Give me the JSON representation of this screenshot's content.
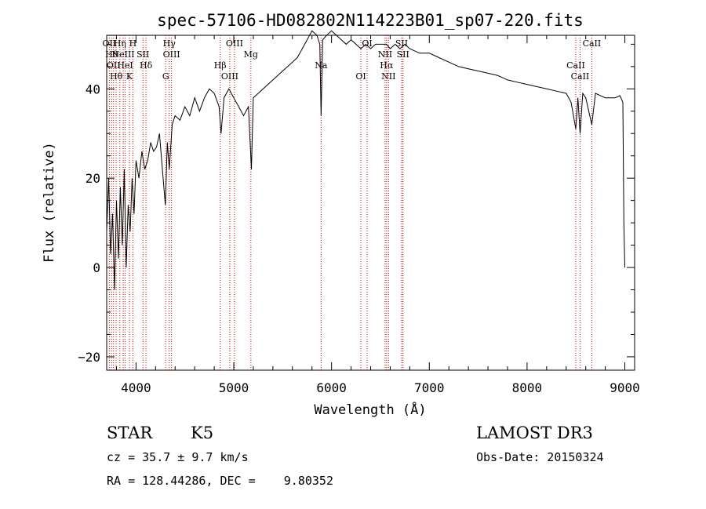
{
  "chart_data": {
    "type": "line",
    "title": "spec-57106-HD082802N114223B01_sp07-220.fits",
    "xlabel": "Wavelength (Å)",
    "ylabel": "Flux (relative)",
    "xlim": [
      3700,
      9100
    ],
    "ylim": [
      -23,
      52
    ],
    "xticks": [
      4000,
      5000,
      6000,
      7000,
      8000,
      9000
    ],
    "yticks": [
      -20,
      0,
      20,
      40
    ],
    "grid": false,
    "series": [
      {
        "values_description_note": "",
        "x": [
          3700,
          3720,
          3740,
          3760,
          3780,
          3800,
          3820,
          3840,
          3860,
          3880,
          3900,
          3920,
          3940,
          3960,
          3980,
          4000,
          4030,
          4060,
          4090,
          4120,
          4150,
          4180,
          4210,
          4240,
          4270,
          4300,
          4320,
          4340,
          4370,
          4400,
          4450,
          4500,
          4550,
          4600,
          4650,
          4700,
          4750,
          4800,
          4850,
          4870,
          4900,
          4950,
          5000,
          5050,
          5100,
          5150,
          5180,
          5200,
          5250,
          5300,
          5350,
          5400,
          5450,
          5500,
          5550,
          5600,
          5650,
          5700,
          5750,
          5800,
          5850,
          5880,
          5893,
          5910,
          5950,
          6000,
          6050,
          6100,
          6150,
          6200,
          6250,
          6300,
          6350,
          6400,
          6450,
          6500,
          6563,
          6600,
          6650,
          6700,
          6750,
          6800,
          6900,
          7000,
          7100,
          7200,
          7300,
          7400,
          7500,
          7600,
          7700,
          7800,
          7900,
          8000,
          8100,
          8200,
          8300,
          8400,
          8450,
          8498,
          8520,
          8542,
          8570,
          8600,
          8662,
          8700,
          8750,
          8800,
          8850,
          8900,
          8950,
          8980,
          8990,
          9000
        ],
        "y": [
          8,
          20,
          3,
          12,
          -5,
          15,
          2,
          18,
          5,
          22,
          0,
          14,
          8,
          20,
          12,
          24,
          20,
          26,
          22,
          24,
          28,
          26,
          27,
          30,
          22,
          14,
          28,
          22,
          32,
          34,
          33,
          36,
          34,
          38,
          35,
          38,
          40,
          39,
          36,
          30,
          38,
          40,
          38,
          36,
          34,
          36,
          22,
          38,
          39,
          40,
          41,
          42,
          43,
          44,
          45,
          46,
          47,
          49,
          51,
          53,
          52,
          50,
          34,
          51,
          52,
          53,
          52,
          51,
          50,
          51,
          50,
          49,
          50,
          49,
          50,
          50,
          50,
          49,
          50,
          49,
          50,
          49,
          48,
          48,
          47,
          46,
          45,
          44.5,
          44,
          43.5,
          43,
          42,
          41.5,
          41,
          40.5,
          40,
          39.5,
          39,
          37,
          31,
          38,
          30,
          39,
          38,
          32,
          39,
          38.5,
          38,
          38,
          38,
          38.5,
          37,
          10,
          0
        ]
      }
    ],
    "line_markers": [
      {
        "wave": 3727,
        "label": "OII"
      },
      {
        "wave": 3750,
        "label": "Hθ"
      },
      {
        "wave": 3770,
        "label": "OII"
      },
      {
        "wave": 3797,
        "label": "Hθ"
      },
      {
        "wave": 3835,
        "label": "Hη"
      },
      {
        "wave": 3869,
        "label": "NeIII"
      },
      {
        "wave": 3889,
        "label": "HeI"
      },
      {
        "wave": 3933,
        "label": "K"
      },
      {
        "wave": 3968,
        "label": "H"
      },
      {
        "wave": 4071,
        "label": "SII"
      },
      {
        "wave": 4102,
        "label": "Hδ"
      },
      {
        "wave": 4304,
        "label": "G"
      },
      {
        "wave": 4340,
        "label": "Hγ"
      },
      {
        "wave": 4363,
        "label": "OIII"
      },
      {
        "wave": 4861,
        "label": "Hβ"
      },
      {
        "wave": 4959,
        "label": "OIII"
      },
      {
        "wave": 5007,
        "label": "OIII"
      },
      {
        "wave": 5175,
        "label": "Mg"
      },
      {
        "wave": 5893,
        "label": "Na"
      },
      {
        "wave": 6300,
        "label": "OI"
      },
      {
        "wave": 6364,
        "label": "OI"
      },
      {
        "wave": 6548,
        "label": "NII"
      },
      {
        "wave": 6563,
        "label": "Hα"
      },
      {
        "wave": 6583,
        "label": "NII"
      },
      {
        "wave": 6717,
        "label": "SII"
      },
      {
        "wave": 6731,
        "label": "SII"
      },
      {
        "wave": 8498,
        "label": "CaII"
      },
      {
        "wave": 8542,
        "label": "CaII"
      },
      {
        "wave": 8662,
        "label": "CaII"
      }
    ],
    "marker_color": "#cc0000",
    "line_color": "#000000"
  },
  "info": {
    "object_class": "STAR",
    "subclass": "K5",
    "survey": "LAMOST DR3",
    "cz": "cz = 35.7 ± 9.7 km/s",
    "obs_date": "Obs-Date: 20150324",
    "coords": "RA = 128.44286, DEC =    9.80352"
  }
}
